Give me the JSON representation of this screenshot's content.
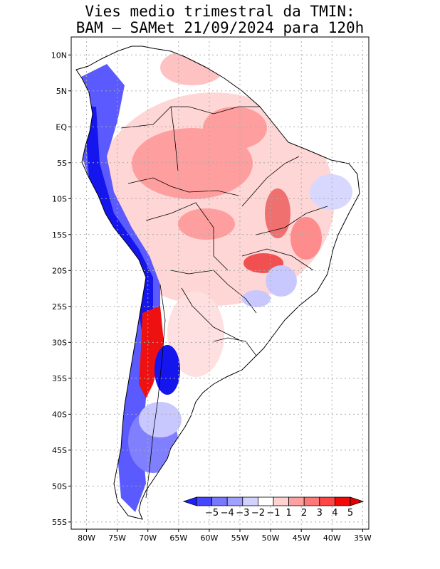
{
  "title": {
    "line1": "Vies medio trimestral da TMIN:",
    "line2": "BAM — SAMet 21/09/2024  para 120h"
  },
  "axes": {
    "lat_labels": [
      "10N",
      "5N",
      "EQ",
      "5S",
      "10S",
      "15S",
      "20S",
      "25S",
      "30S",
      "35S",
      "40S",
      "45S",
      "50S",
      "55S"
    ],
    "lat_values": [
      10,
      5,
      0,
      -5,
      -10,
      -15,
      -20,
      -25,
      -30,
      -35,
      -40,
      -45,
      -50,
      -55
    ],
    "lon_labels": [
      "80W",
      "75W",
      "70W",
      "65W",
      "60W",
      "55W",
      "50W",
      "45W",
      "40W",
      "35W"
    ],
    "lon_values": [
      -80,
      -75,
      -70,
      -65,
      -60,
      -55,
      -50,
      -45,
      -40,
      -35
    ],
    "lat_range": [
      -56,
      12.5
    ],
    "lon_range": [
      -82.5,
      -34
    ]
  },
  "colorbar": {
    "labels": [
      "−5",
      "−4",
      "−3",
      "−2",
      "−1",
      "1",
      "2",
      "3",
      "4",
      "5"
    ],
    "colors": [
      "#1e1eff",
      "#4646ff",
      "#7878ff",
      "#a0a0ff",
      "#d2d2ff",
      "#ffffff",
      "#ffd2d2",
      "#ffa0a0",
      "#ff7878",
      "#ff4646",
      "#f00a0a",
      "#e00000"
    ]
  },
  "colors": {
    "land": "#ffffff",
    "strong_cold": "#1515ee",
    "cold": "#5a5aff",
    "light_cold": "#c8c8ff",
    "warm": "#ff9e9e",
    "light_warm": "#ffd6d6",
    "strong_warm": "#ee1111",
    "border": "#000000",
    "grid": "#aaaaaa"
  }
}
